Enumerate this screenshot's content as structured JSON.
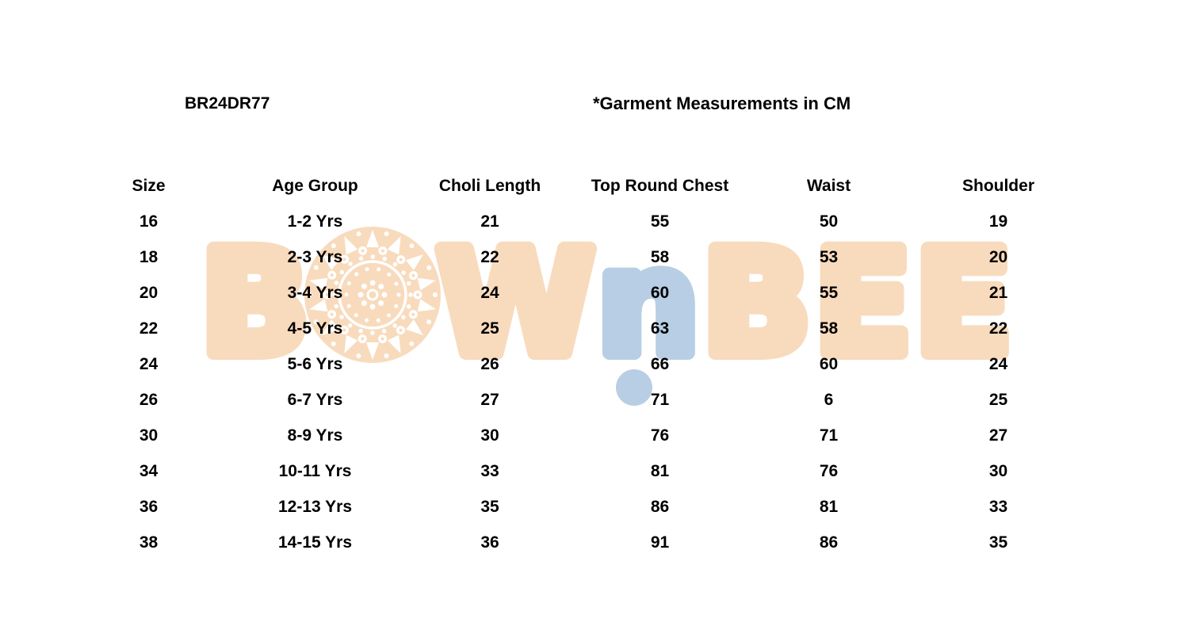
{
  "chart_data": {
    "type": "table",
    "product_code": "BR24DR77",
    "title": "*Garment Measurements in CM",
    "columns": [
      "Size",
      "Age Group",
      "Choli Length",
      "Top Round Chest",
      "Waist",
      "Shoulder"
    ],
    "rows": [
      [
        "16",
        "1-2 Yrs",
        "21",
        "55",
        "50",
        "19"
      ],
      [
        "18",
        "2-3 Yrs",
        "22",
        "58",
        "53",
        "20"
      ],
      [
        "20",
        "3-4 Yrs",
        "24",
        "60",
        "55",
        "21"
      ],
      [
        "22",
        "4-5 Yrs",
        "25",
        "63",
        "58",
        "22"
      ],
      [
        "24",
        "5-6 Yrs",
        "26",
        "66",
        "60",
        "24"
      ],
      [
        "26",
        "6-7 Yrs",
        "27",
        "71",
        "6",
        "25"
      ],
      [
        "30",
        "8-9 Yrs",
        "30",
        "76",
        "71",
        "27"
      ],
      [
        "34",
        "10-11 Yrs",
        "33",
        "81",
        "76",
        "30"
      ],
      [
        "36",
        "12-13 Yrs",
        "35",
        "86",
        "81",
        "33"
      ],
      [
        "38",
        "14-15 Yrs",
        "36",
        "91",
        "86",
        "35"
      ]
    ],
    "grid": false,
    "units": "CM"
  },
  "watermark": {
    "part1": "BOW",
    "part2": "n",
    "part3": "BEE",
    "peach_color": "#f8dbbd",
    "blue_color": "#b8cee4",
    "mandala_color": "#ffffff"
  }
}
